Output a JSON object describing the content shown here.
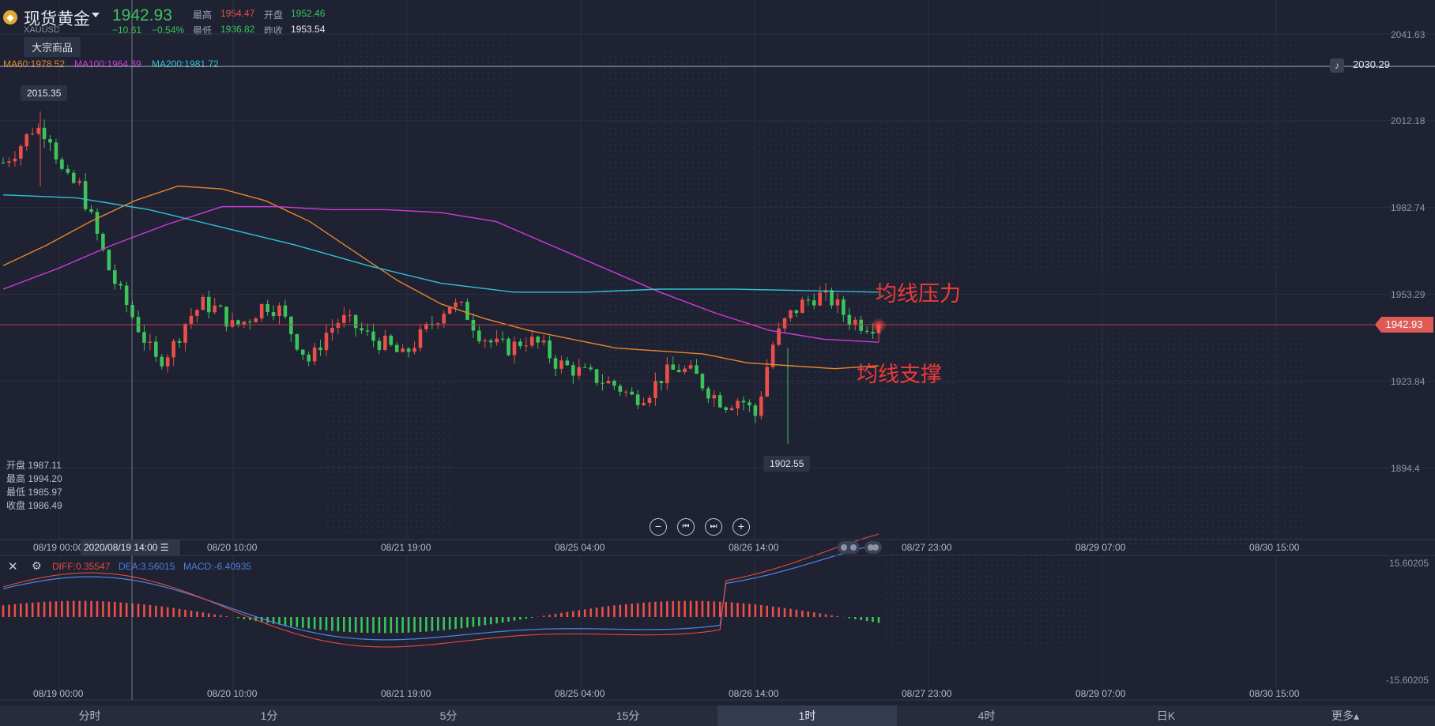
{
  "header": {
    "name": "现货黄金",
    "symbol": "XAUUSD",
    "price": "1942.93",
    "change": "−10.61",
    "change_pct": "−0.54%",
    "high_label": "最高",
    "high": "1954.47",
    "open_label": "开盘",
    "open": "1952.46",
    "low_label": "最低",
    "low": "1936.82",
    "prev_label": "昨收",
    "prev": "1953.54",
    "category": "大宗商品"
  },
  "ma_legend": {
    "ma60": "MA60:1978.52",
    "ma100": "MA100:1964.39",
    "ma200": "MA200:1981.72"
  },
  "ohlc_panel": {
    "open": "开盘 1987.11",
    "high": "最高 1994.20",
    "low": "最低 1985.97",
    "close": "收盘 1986.49"
  },
  "alert_price": "2030.29",
  "current_price_tag": "1942.93",
  "crosshair_time": "2020/08/19 14:00",
  "high_marker": "2015.35",
  "low_marker": "1902.55",
  "annotations": {
    "resistance": "均线压力",
    "support": "均线支撑"
  },
  "macd_legend": {
    "diff": "DIFF:0.35547",
    "dea": "DEA:3.56015",
    "macd": "MACD:-6.40935"
  },
  "tabs": [
    "分时",
    "1分",
    "5分",
    "15分",
    "1时",
    "4时",
    "日K",
    "更多▴"
  ],
  "active_tab": "1时",
  "colors": {
    "up": "#ec4f4a",
    "down": "#3cc45a",
    "ma60": "#e8852a",
    "ma100": "#d23adb",
    "ma200": "#2fc3d6",
    "diff": "#e84a3b",
    "dea": "#4b7fe0",
    "background": "#1e2232"
  },
  "chart_data": [
    {
      "type": "candlestick",
      "y_axis": [
        2041.63,
        2012.18,
        1982.74,
        1953.29,
        1923.84,
        1894.4
      ],
      "ylim": [
        1880,
        2045
      ],
      "x_ticks": [
        "08/19 00:00",
        "08/20 10:00",
        "08/21 19:00",
        "08/25 04:00",
        "08/26 14:00",
        "08/27 23:00",
        "08/29 07:00",
        "08/30 15:00"
      ],
      "close_path": [
        1998,
        2003,
        2010,
        2008,
        1992,
        1990,
        1975,
        1960,
        1950,
        1940,
        1930,
        1935,
        1945,
        1950,
        1948,
        1942,
        1945,
        1950,
        1948,
        1938,
        1930,
        1940,
        1945,
        1942,
        1938,
        1936,
        1932,
        1938,
        1944,
        1950,
        1948,
        1940,
        1936,
        1935,
        1938,
        1936,
        1930,
        1928,
        1926,
        1924,
        1922,
        1918,
        1920,
        1926,
        1928,
        1926,
        1920,
        1916,
        1918,
        1912,
        1935,
        1945,
        1950,
        1953,
        1951,
        1945,
        1943,
        1942.93
      ],
      "series": [
        {
          "name": "MA60",
          "values": [
            1963,
            1970,
            1978,
            1985,
            1990,
            1989,
            1985,
            1978,
            1968,
            1958,
            1950,
            1945,
            1941,
            1938,
            1935,
            1934,
            1933,
            1930,
            1929,
            1928,
            1929
          ]
        },
        {
          "name": "MA100",
          "values": [
            1955,
            1962,
            1970,
            1977,
            1983,
            1983,
            1982,
            1982,
            1981,
            1978,
            1970,
            1962,
            1954,
            1947,
            1941,
            1938,
            1937
          ]
        },
        {
          "name": "MA200",
          "values": [
            1987,
            1986,
            1982,
            1976,
            1970,
            1963,
            1957,
            1954,
            1954,
            1955,
            1955,
            1954.5,
            1954
          ]
        }
      ],
      "high": 2015.35,
      "low": 1902.55
    },
    {
      "type": "bar",
      "name": "MACD",
      "y_axis": [
        "15.60205",
        "-15.60205"
      ],
      "x_ticks": [
        "08/19 00:00",
        "08/20 10:00",
        "08/21 19:00",
        "08/25 04:00",
        "08/26 14:00",
        "08/27 23:00",
        "08/29 07:00",
        "08/30 15:00"
      ]
    }
  ]
}
